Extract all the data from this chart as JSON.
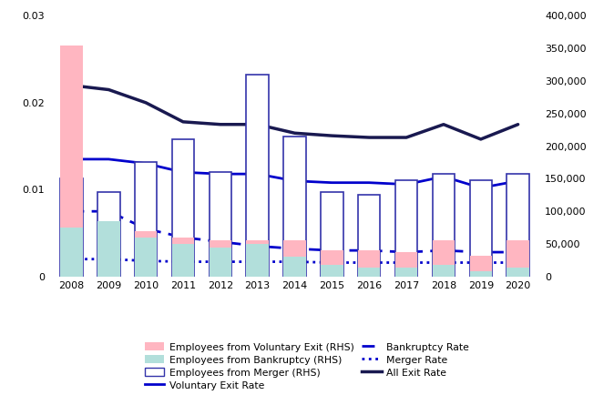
{
  "years": [
    2008,
    2009,
    2010,
    2011,
    2012,
    2013,
    2014,
    2015,
    2016,
    2017,
    2018,
    2019,
    2020
  ],
  "voluntary_exit_rate": [
    0.0135,
    0.0135,
    0.013,
    0.012,
    0.0118,
    0.0118,
    0.011,
    0.0108,
    0.0108,
    0.0106,
    0.0115,
    0.0102,
    0.011
  ],
  "bankruptcy_rate": [
    0.0075,
    0.0075,
    0.0055,
    0.0045,
    0.004,
    0.0035,
    0.0032,
    0.003,
    0.003,
    0.0028,
    0.003,
    0.0028,
    0.0028
  ],
  "merger_rate": [
    0.002,
    0.002,
    0.0018,
    0.0017,
    0.0017,
    0.0017,
    0.0017,
    0.0016,
    0.0016,
    0.0016,
    0.0016,
    0.0016,
    0.0016
  ],
  "all_exit_rate": [
    0.022,
    0.0215,
    0.02,
    0.0178,
    0.0175,
    0.0175,
    0.0165,
    0.0162,
    0.016,
    0.016,
    0.0175,
    0.0158,
    0.0175
  ],
  "employees_voluntary": [
    355000,
    60000,
    70000,
    60000,
    55000,
    55000,
    55000,
    40000,
    40000,
    38000,
    55000,
    32000,
    55000
  ],
  "employees_bankruptcy": [
    75000,
    85000,
    60000,
    50000,
    45000,
    50000,
    30000,
    18000,
    14000,
    14000,
    18000,
    8000,
    14000
  ],
  "employees_merger": [
    150000,
    130000,
    175000,
    210000,
    160000,
    310000,
    215000,
    130000,
    125000,
    148000,
    158000,
    148000,
    158000
  ],
  "left_ylim": [
    0,
    0.03
  ],
  "right_ylim": [
    0,
    400000
  ],
  "left_yticks": [
    0,
    0.01,
    0.02,
    0.03
  ],
  "right_yticks": [
    0,
    50000,
    100000,
    150000,
    200000,
    250000,
    300000,
    350000,
    400000
  ],
  "color_voluntary_exit_rate": "#0000CC",
  "color_bankruptcy_rate": "#0000CC",
  "color_merger_rate": "#0000CC",
  "color_all_exit_rate": "#191950",
  "color_emp_voluntary": "#FFB6C1",
  "color_emp_bankruptcy": "#B2DFDB",
  "color_emp_merger_edge": "#3333AA",
  "color_emp_merger_fill": "none"
}
